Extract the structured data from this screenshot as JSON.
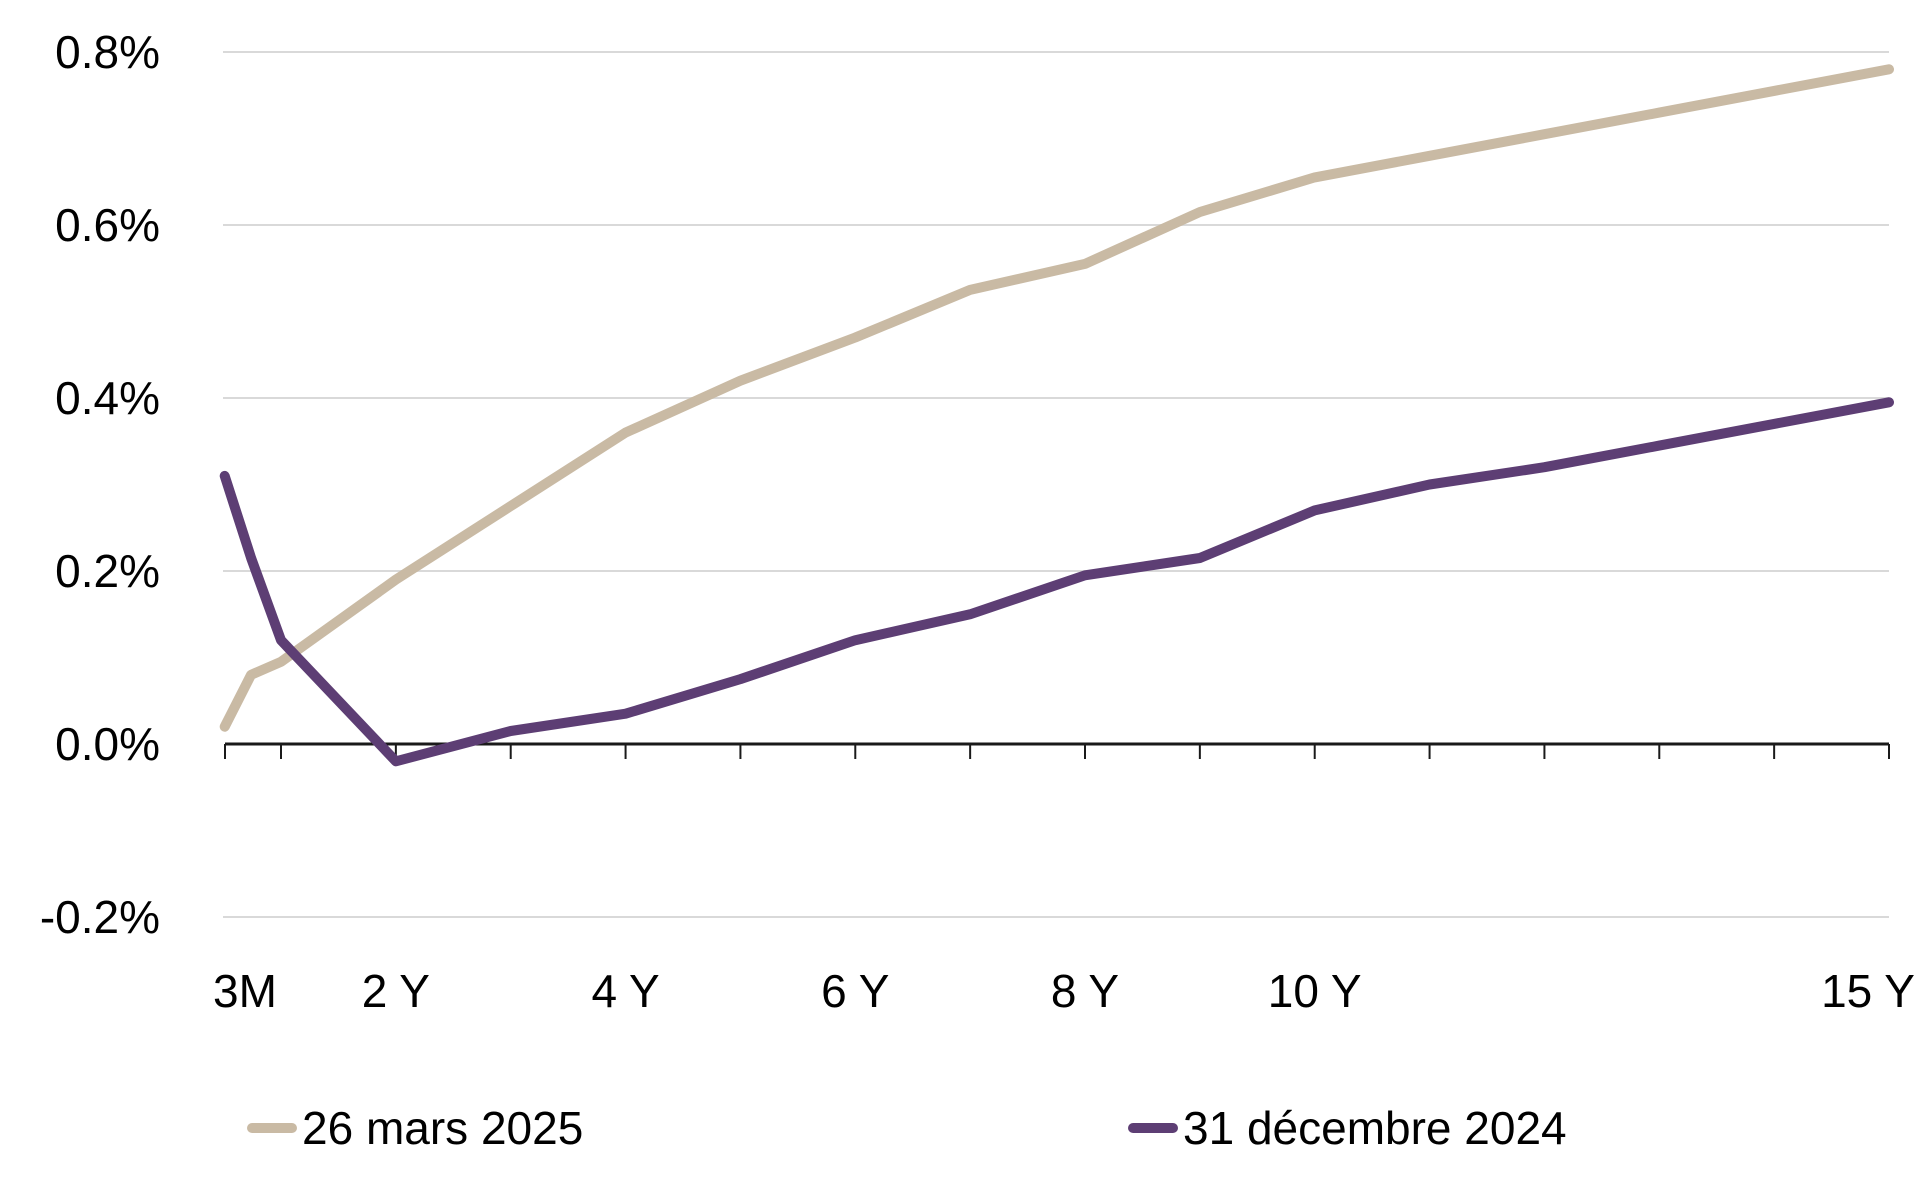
{
  "chart_data": {
    "type": "line",
    "title": "",
    "xlabel": "",
    "ylabel": "",
    "grid": true,
    "legend_position": "bottom",
    "y_ticks": [
      {
        "label": "0.8%",
        "value": 0.8
      },
      {
        "label": "0.6%",
        "value": 0.6
      },
      {
        "label": "0.4%",
        "value": 0.4
      },
      {
        "label": "0.2%",
        "value": 0.2
      },
      {
        "label": "0.0%",
        "value": 0.0
      },
      {
        "label": "-0.2%",
        "value": -0.2
      }
    ],
    "ylim": [
      -0.28,
      0.87
    ],
    "x_axis_ticks_years": [
      1,
      2,
      3,
      4,
      5,
      6,
      7,
      8,
      9,
      10,
      11,
      12,
      13,
      14,
      15
    ],
    "x_axis_labels": [
      {
        "text": "3M",
        "pos": 0.25
      },
      {
        "text": "2 Y",
        "pos": 2
      },
      {
        "text": "4 Y",
        "pos": 4
      },
      {
        "text": "6 Y",
        "pos": 6
      },
      {
        "text": "8 Y",
        "pos": 8
      },
      {
        "text": "10 Y",
        "pos": 10
      },
      {
        "text": "15 Y",
        "pos": 15
      }
    ],
    "maturities": [
      "3M",
      "6M",
      "1Y",
      "2Y",
      "3Y",
      "4Y",
      "5Y",
      "6Y",
      "7Y",
      "8Y",
      "9Y",
      "10Y",
      "11Y",
      "12Y",
      "13Y",
      "14Y",
      "15Y"
    ],
    "x_plot_years": [
      0.51,
      0.74,
      1,
      2,
      3,
      4,
      5,
      6,
      7,
      8,
      9,
      10,
      11,
      12,
      13,
      14,
      15
    ],
    "series": [
      {
        "name": "26 mars 2025",
        "color": "#C9BAA4",
        "values": [
          0.02,
          0.08,
          0.095,
          0.19,
          0.275,
          0.36,
          0.42,
          0.47,
          0.525,
          0.555,
          0.615,
          0.655,
          0.68,
          0.705,
          0.73,
          0.755,
          0.78
        ]
      },
      {
        "name": "31 décembre 2024",
        "color": "#5D3E74",
        "values": [
          0.31,
          0.215,
          0.12,
          -0.02,
          0.015,
          0.035,
          0.075,
          0.12,
          0.15,
          0.195,
          0.215,
          0.27,
          0.3,
          0.32,
          0.345,
          0.37,
          0.395
        ]
      }
    ]
  },
  "legend": {
    "items": [
      {
        "label": "26 mars 2025",
        "color": "#C9BAA4"
      },
      {
        "label": "31 décembre 2024",
        "color": "#5D3E74"
      }
    ]
  },
  "style": {
    "grid_color": "#D9D9D9",
    "axis_color": "#1A1A1A",
    "text_color": "#000000",
    "background": "#FFFFFF"
  }
}
